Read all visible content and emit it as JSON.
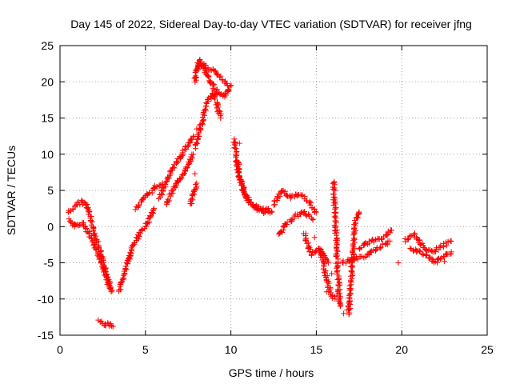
{
  "chart_data": {
    "type": "scatter",
    "title": "Day 145 of 2022, Sidereal Day-to-day VTEC variation (SDTVAR) for receiver jfng",
    "xlabel": "GPS time / hours",
    "ylabel": "SDTVAR / TECUs",
    "xlim": [
      0,
      25
    ],
    "ylim": [
      -15,
      25
    ],
    "xticks": [
      "0",
      "5",
      "10",
      "15",
      "20",
      "25"
    ],
    "yticks": [
      "25",
      "20",
      "15",
      "10",
      "5",
      "0",
      "-5",
      "-10",
      "-15"
    ],
    "grid": true,
    "marker": "+",
    "series_color": "#ff0000",
    "segments": [
      {
        "x": [
          0.5,
          0.8,
          1.2,
          1.6,
          1.9,
          2.3,
          2.7,
          3.0
        ],
        "y": [
          2.0,
          2.5,
          3.5,
          3.0,
          0.0,
          -3.0,
          -6.0,
          -9.0
        ]
      },
      {
        "x": [
          0.5,
          0.9,
          1.3,
          1.7,
          2.1,
          2.5,
          2.9
        ],
        "y": [
          1.0,
          0.0,
          0.5,
          -1.0,
          -3.0,
          -5.5,
          -8.5
        ]
      },
      {
        "x": [
          2.3,
          2.6,
          2.9,
          3.1
        ],
        "y": [
          -13.0,
          -13.5,
          -13.5,
          -13.8
        ]
      },
      {
        "x": [
          3.5,
          3.7,
          3.9,
          4.1
        ],
        "y": [
          -9.0,
          -7.0,
          -5.5,
          -4.0
        ]
      },
      {
        "x": [
          4.0,
          4.3,
          4.7,
          5.1,
          5.5
        ],
        "y": [
          -4.5,
          -2.5,
          -1.0,
          0.5,
          2.5
        ]
      },
      {
        "x": [
          4.4,
          4.8,
          5.2,
          5.6,
          6.0
        ],
        "y": [
          2.5,
          3.5,
          4.5,
          5.5,
          6.0
        ]
      },
      {
        "x": [
          5.8,
          6.2,
          6.6,
          7.0,
          7.4,
          7.8
        ],
        "y": [
          4.0,
          6.0,
          8.0,
          9.5,
          11.0,
          12.5
        ]
      },
      {
        "x": [
          6.2,
          6.6,
          7.0,
          7.4,
          7.8
        ],
        "y": [
          3.0,
          5.0,
          6.5,
          8.0,
          10.0
        ]
      },
      {
        "x": [
          7.6,
          7.8,
          8.0
        ],
        "y": [
          3.0,
          4.5,
          6.0
        ]
      },
      {
        "x": [
          7.9,
          8.1,
          8.4,
          8.8,
          9.2,
          9.6,
          10.0
        ],
        "y": [
          20.0,
          23.0,
          22.0,
          20.0,
          18.5,
          18.0,
          19.5
        ]
      },
      {
        "x": [
          8.0,
          8.3,
          8.6,
          9.0,
          9.4,
          9.8
        ],
        "y": [
          21.5,
          22.5,
          22.0,
          21.5,
          20.5,
          19.5
        ]
      },
      {
        "x": [
          7.9,
          8.2,
          8.6,
          9.0,
          9.4
        ],
        "y": [
          11.0,
          13.5,
          17.0,
          18.5,
          15.0
        ]
      },
      {
        "x": [
          10.2,
          10.5,
          10.9,
          11.4,
          11.9,
          12.4
        ],
        "y": [
          12.0,
          7.0,
          4.0,
          2.5,
          2.0,
          2.0
        ]
      },
      {
        "x": [
          10.3,
          10.7,
          11.2,
          11.7,
          12.2
        ],
        "y": [
          9.0,
          5.0,
          3.0,
          2.5,
          2.5
        ]
      },
      {
        "x": [
          12.5,
          13.0,
          13.5,
          14.0,
          14.5,
          15.0
        ],
        "y": [
          3.0,
          5.0,
          4.0,
          4.5,
          3.5,
          2.0
        ]
      },
      {
        "x": [
          12.8,
          13.3,
          13.8,
          14.3,
          14.8
        ],
        "y": [
          -1.0,
          0.5,
          1.5,
          2.0,
          1.0
        ]
      },
      {
        "x": [
          14.3,
          14.7,
          15.2,
          15.7
        ],
        "y": [
          -1.0,
          -4.0,
          -3.0,
          -5.0
        ]
      },
      {
        "x": [
          15.2,
          15.5,
          15.8,
          16.1
        ],
        "y": [
          -3.0,
          -6.0,
          -9.0,
          -10.0
        ]
      },
      {
        "x": [
          16.0,
          16.1,
          16.2,
          16.3,
          16.4
        ],
        "y": [
          6.0,
          2.0,
          -4.0,
          -8.0,
          -11.0
        ]
      },
      {
        "x": [
          16.9,
          17.1,
          17.3,
          17.5
        ],
        "y": [
          -12.0,
          -5.0,
          1.0,
          2.0
        ]
      },
      {
        "x": [
          16.5,
          17.2,
          17.9,
          18.6,
          19.3
        ],
        "y": [
          -5.0,
          -4.5,
          -4.0,
          -3.0,
          -2.0
        ]
      },
      {
        "x": [
          17.5,
          18.2,
          18.9,
          19.4
        ],
        "y": [
          -3.0,
          -2.0,
          -1.5,
          -0.5
        ]
      },
      {
        "x": [
          20.2,
          20.7,
          21.2,
          21.7,
          22.2,
          22.9
        ],
        "y": [
          -2.0,
          -1.0,
          -2.5,
          -3.5,
          -3.0,
          -2.0
        ]
      },
      {
        "x": [
          20.5,
          21.0,
          21.5,
          22.0,
          22.5,
          22.9
        ],
        "y": [
          -3.0,
          -3.5,
          -4.0,
          -5.0,
          -4.0,
          -3.5
        ]
      }
    ],
    "scattered": [
      [
        16.05,
        6.2
      ],
      [
        16.2,
        -9.5
      ],
      [
        16.4,
        -10.5
      ],
      [
        16.6,
        -12.0
      ],
      [
        16.8,
        -11.5
      ],
      [
        15.6,
        -9.0
      ],
      [
        15.9,
        -6.5
      ],
      [
        14.9,
        -1.5
      ],
      [
        13.0,
        -0.8
      ],
      [
        17.5,
        2.0
      ],
      [
        7.9,
        7.3
      ],
      [
        8.0,
        13.5
      ],
      [
        10.5,
        11.5
      ],
      [
        19.8,
        -5.0
      ],
      [
        22.5,
        -4.8
      ]
    ]
  }
}
